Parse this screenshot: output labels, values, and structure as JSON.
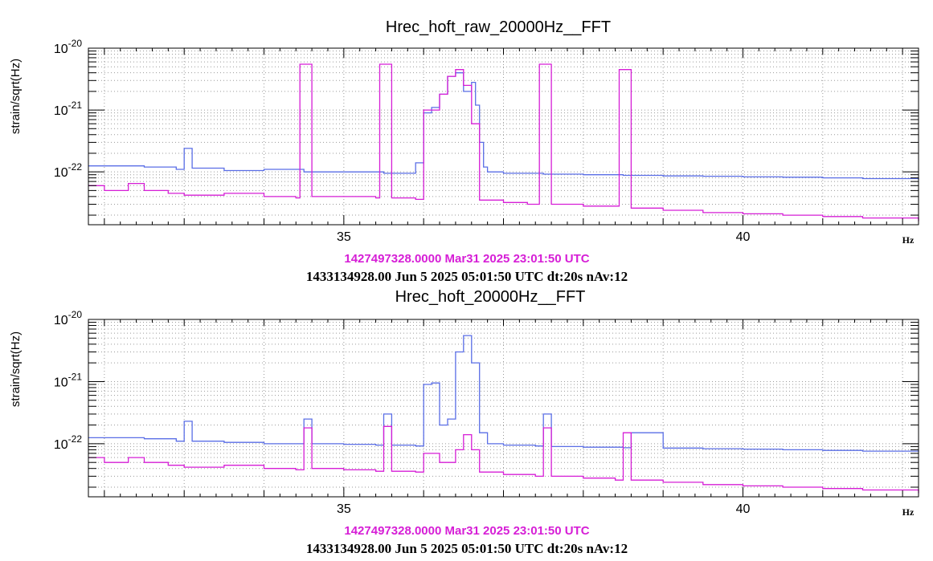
{
  "chart_data": [
    {
      "type": "line",
      "title": "Hrec_hoft_raw_20000Hz__FFT",
      "xlabel": "Hz",
      "ylabel": "strain/sqrt(Hz)",
      "xlim": [
        31.8,
        42.2
      ],
      "ylim": [
        1.4e-23,
        1e-20
      ],
      "yscale": "log",
      "xticks": [
        35,
        40
      ],
      "xtick_labels": [
        "35",
        "40"
      ],
      "yticks": [
        1e-22,
        1e-21,
        1e-20
      ],
      "ytick_labels": [
        "10^-22",
        "10^-21",
        "10^-20"
      ],
      "grid": true,
      "series": [
        {
          "color": "#5a6ee6",
          "x": [
            31.8,
            32.5,
            32.9,
            33.0,
            33.1,
            33.5,
            34.0,
            34.5,
            35.0,
            35.5,
            35.7,
            35.9,
            36.0,
            36.1,
            36.2,
            36.3,
            36.4,
            36.5,
            36.6,
            36.65,
            36.7,
            36.75,
            36.8,
            37.0,
            37.5,
            38.0,
            38.5,
            39.0,
            39.5,
            40.0,
            40.5,
            41.0,
            41.5,
            42.2
          ],
          "y": [
            1.25e-22,
            1.2e-22,
            1.1e-22,
            2.4e-22,
            1.15e-22,
            1.05e-22,
            1.1e-22,
            1e-22,
            1e-22,
            9.5e-23,
            9.5e-23,
            1.4e-22,
            9e-22,
            1.1e-21,
            1.8e-21,
            3.5e-21,
            4e-21,
            2e-21,
            2.8e-21,
            1.2e-21,
            3e-22,
            1.2e-22,
            1e-22,
            9.5e-23,
            9.2e-23,
            9e-23,
            8.8e-23,
            8.6e-23,
            8.5e-23,
            8.3e-23,
            8.2e-23,
            8e-23,
            7.8e-23,
            7.5e-23
          ]
        },
        {
          "color": "#d61ed6",
          "x": [
            31.8,
            32.0,
            32.3,
            32.5,
            32.8,
            33.0,
            33.5,
            34.0,
            34.4,
            34.45,
            34.55,
            34.6,
            35.0,
            35.4,
            35.45,
            35.55,
            35.6,
            35.9,
            36.0,
            36.2,
            36.3,
            36.4,
            36.5,
            36.6,
            36.7,
            37.0,
            37.3,
            37.4,
            37.45,
            37.55,
            37.6,
            38.0,
            38.4,
            38.45,
            38.55,
            38.6,
            39.0,
            39.5,
            40.0,
            40.5,
            41.0,
            41.5,
            42.2
          ],
          "y": [
            6e-23,
            5e-23,
            6.5e-23,
            5e-23,
            4.5e-23,
            4.2e-23,
            4.5e-23,
            4e-23,
            3.8e-23,
            5.5e-21,
            5.5e-21,
            4e-23,
            4e-23,
            3.8e-23,
            5.5e-21,
            5.5e-21,
            3.8e-23,
            3.6e-23,
            1e-21,
            1.8e-21,
            3.5e-21,
            4.5e-21,
            2.5e-21,
            6e-22,
            3.5e-23,
            3.2e-23,
            3e-23,
            3e-23,
            5.5e-21,
            5.5e-21,
            3e-23,
            2.8e-23,
            2.8e-23,
            4.5e-21,
            4.5e-21,
            2.6e-23,
            2.4e-23,
            2.2e-23,
            2.1e-23,
            2e-23,
            1.9e-23,
            1.8e-23,
            1.6e-23
          ]
        }
      ]
    },
    {
      "type": "line",
      "title": "Hrec_hoft_20000Hz__FFT",
      "xlabel": "Hz",
      "ylabel": "strain/sqrt(Hz)",
      "xlim": [
        31.8,
        42.2
      ],
      "ylim": [
        1.4e-23,
        1e-20
      ],
      "yscale": "log",
      "xticks": [
        35,
        40
      ],
      "xtick_labels": [
        "35",
        "40"
      ],
      "yticks": [
        1e-22,
        1e-21,
        1e-20
      ],
      "ytick_labels": [
        "10^-22",
        "10^-21",
        "10^-20"
      ],
      "grid": true,
      "series": [
        {
          "color": "#5a6ee6",
          "x": [
            31.8,
            32.5,
            32.9,
            33.0,
            33.1,
            33.5,
            34.0,
            34.4,
            34.5,
            34.6,
            35.0,
            35.4,
            35.5,
            35.6,
            35.9,
            36.0,
            36.1,
            36.2,
            36.3,
            36.4,
            36.5,
            36.6,
            36.7,
            36.8,
            37.0,
            37.4,
            37.5,
            37.6,
            38.0,
            38.5,
            38.6,
            39.0,
            39.5,
            40.0,
            40.5,
            41.0,
            41.5,
            42.2
          ],
          "y": [
            1.25e-22,
            1.2e-22,
            1.1e-22,
            2.3e-22,
            1.1e-22,
            1.05e-22,
            1e-22,
            1e-22,
            2.5e-22,
            1e-22,
            9.8e-23,
            9.5e-23,
            3e-22,
            9.5e-23,
            9.2e-23,
            9e-22,
            9.5e-22,
            2e-22,
            2.5e-22,
            3e-21,
            5.5e-21,
            2e-21,
            1.5e-22,
            1e-22,
            9.5e-23,
            9.2e-23,
            3e-22,
            9e-23,
            8.8e-23,
            8.6e-23,
            1.5e-22,
            8.5e-23,
            8.3e-23,
            8.2e-23,
            8e-23,
            7.8e-23,
            7.6e-23,
            7.5e-23
          ]
        },
        {
          "color": "#d61ed6",
          "x": [
            31.8,
            32.0,
            32.3,
            32.5,
            32.8,
            33.0,
            33.5,
            34.0,
            34.4,
            34.5,
            34.6,
            35.0,
            35.4,
            35.5,
            35.6,
            35.9,
            36.0,
            36.2,
            36.4,
            36.5,
            36.6,
            36.7,
            37.0,
            37.4,
            37.5,
            37.6,
            38.0,
            38.4,
            38.5,
            38.6,
            39.0,
            39.5,
            40.0,
            40.5,
            41.0,
            41.5,
            42.2
          ],
          "y": [
            6e-23,
            5e-23,
            6e-23,
            5e-23,
            4.5e-23,
            4.2e-23,
            4.5e-23,
            4e-23,
            3.8e-23,
            1.8e-22,
            4e-23,
            3.8e-23,
            3.6e-23,
            1.9e-22,
            3.6e-23,
            3.5e-23,
            7e-23,
            5e-23,
            8e-23,
            1.4e-22,
            8e-23,
            3.5e-23,
            3.2e-23,
            3e-23,
            1.8e-22,
            3e-23,
            2.8e-23,
            2.6e-23,
            1.5e-22,
            2.6e-23,
            2.4e-23,
            2.2e-23,
            2.1e-23,
            2e-23,
            1.9e-23,
            1.8e-23,
            1.6e-23
          ]
        }
      ]
    }
  ],
  "footers": [
    {
      "reference": "1427497328.0000 Mar31 2025 23:01:50 UTC",
      "current": "1433134928.00 Jun 5 2025 05:01:50 UTC dt:20s nAv:12"
    },
    {
      "reference": "1427497328.0000 Mar31 2025 23:01:50 UTC",
      "current": "1433134928.00 Jun 5 2025 05:01:50 UTC dt:20s nAv:12"
    }
  ]
}
